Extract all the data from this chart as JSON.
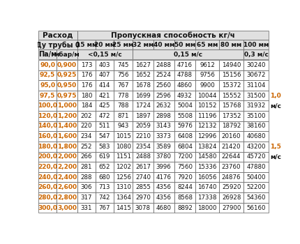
{
  "header_row1": [
    "Расход",
    "Пропускная способность кг/ч"
  ],
  "header_row2": [
    "Ду трубы 0",
    "15 мм",
    "20 мм",
    "25 мм",
    "32 мм",
    "40 мм",
    "50 мм",
    "65 мм",
    "80 мм",
    "100 мм"
  ],
  "header_row3": [
    "Па/м",
    "мбар/м",
    "<0,15 м/с",
    "0,15 м/с",
    "0,3 м/с"
  ],
  "data_rows": [
    [
      "90,0",
      "0,900",
      "173",
      "403",
      "745",
      "1627",
      "2488",
      "4716",
      "9612",
      "14940",
      "30240"
    ],
    [
      "92,5",
      "0,925",
      "176",
      "407",
      "756",
      "1652",
      "2524",
      "4788",
      "9756",
      "15156",
      "30672"
    ],
    [
      "95,0",
      "0,950",
      "176",
      "414",
      "767",
      "1678",
      "2560",
      "4860",
      "9900",
      "15372",
      "31104"
    ],
    [
      "97,5",
      "0,975",
      "180",
      "421",
      "778",
      "1699",
      "2596",
      "4932",
      "10044",
      "15552",
      "31500"
    ],
    [
      "100,0",
      "1,000",
      "184",
      "425",
      "788",
      "1724",
      "2632",
      "5004",
      "10152",
      "15768",
      "31932"
    ],
    [
      "120,0",
      "1,200",
      "202",
      "472",
      "871",
      "1897",
      "2898",
      "5508",
      "11196",
      "17352",
      "35100"
    ],
    [
      "140,0",
      "1,400",
      "220",
      "511",
      "943",
      "2059",
      "3143",
      "5976",
      "12132",
      "18792",
      "38160"
    ],
    [
      "160,0",
      "1,600",
      "234",
      "547",
      "1015",
      "2210",
      "3373",
      "6408",
      "12996",
      "20160",
      "40680"
    ],
    [
      "180,0",
      "1,800",
      "252",
      "583",
      "1080",
      "2354",
      "3589",
      "6804",
      "13824",
      "21420",
      "43200"
    ],
    [
      "200,0",
      "2,000",
      "266",
      "619",
      "1151",
      "2488",
      "3780",
      "7200",
      "14580",
      "22644",
      "45720"
    ],
    [
      "220,0",
      "2,200",
      "281",
      "652",
      "1202",
      "2617",
      "3996",
      "7560",
      "15336",
      "23760",
      "47880"
    ],
    [
      "240,0",
      "2,400",
      "288",
      "680",
      "1256",
      "2740",
      "4176",
      "7920",
      "16056",
      "24876",
      "50400"
    ],
    [
      "260,0",
      "2,600",
      "306",
      "713",
      "1310",
      "2855",
      "4356",
      "8244",
      "16740",
      "25920",
      "52200"
    ],
    [
      "280,0",
      "2,800",
      "317",
      "742",
      "1364",
      "2970",
      "4356",
      "8568",
      "17338",
      "26928",
      "54360"
    ],
    [
      "300,0",
      "3,000",
      "331",
      "767",
      "1415",
      "3078",
      "4680",
      "8892",
      "18000",
      "27900",
      "56160"
    ]
  ],
  "annotations": {
    "3": [
      "",
      "",
      "",
      "",
      "",
      "",
      "",
      "",
      "",
      "",
      "1,0"
    ],
    "4": [
      "",
      "",
      "",
      "",
      "",
      "",
      "",
      "",
      "",
      "",
      "м/с"
    ],
    "8": [
      "",
      "",
      "",
      "",
      "",
      "",
      "",
      "",
      "",
      "",
      "1,5"
    ],
    "9": [
      "",
      "",
      "",
      "",
      "",
      "",
      "",
      "",
      "",
      "",
      "м/с"
    ]
  },
  "orange": "#cc6600",
  "black": "#111111",
  "header_bg": "#e0e0e0",
  "white": "#ffffff",
  "border": "#777777"
}
